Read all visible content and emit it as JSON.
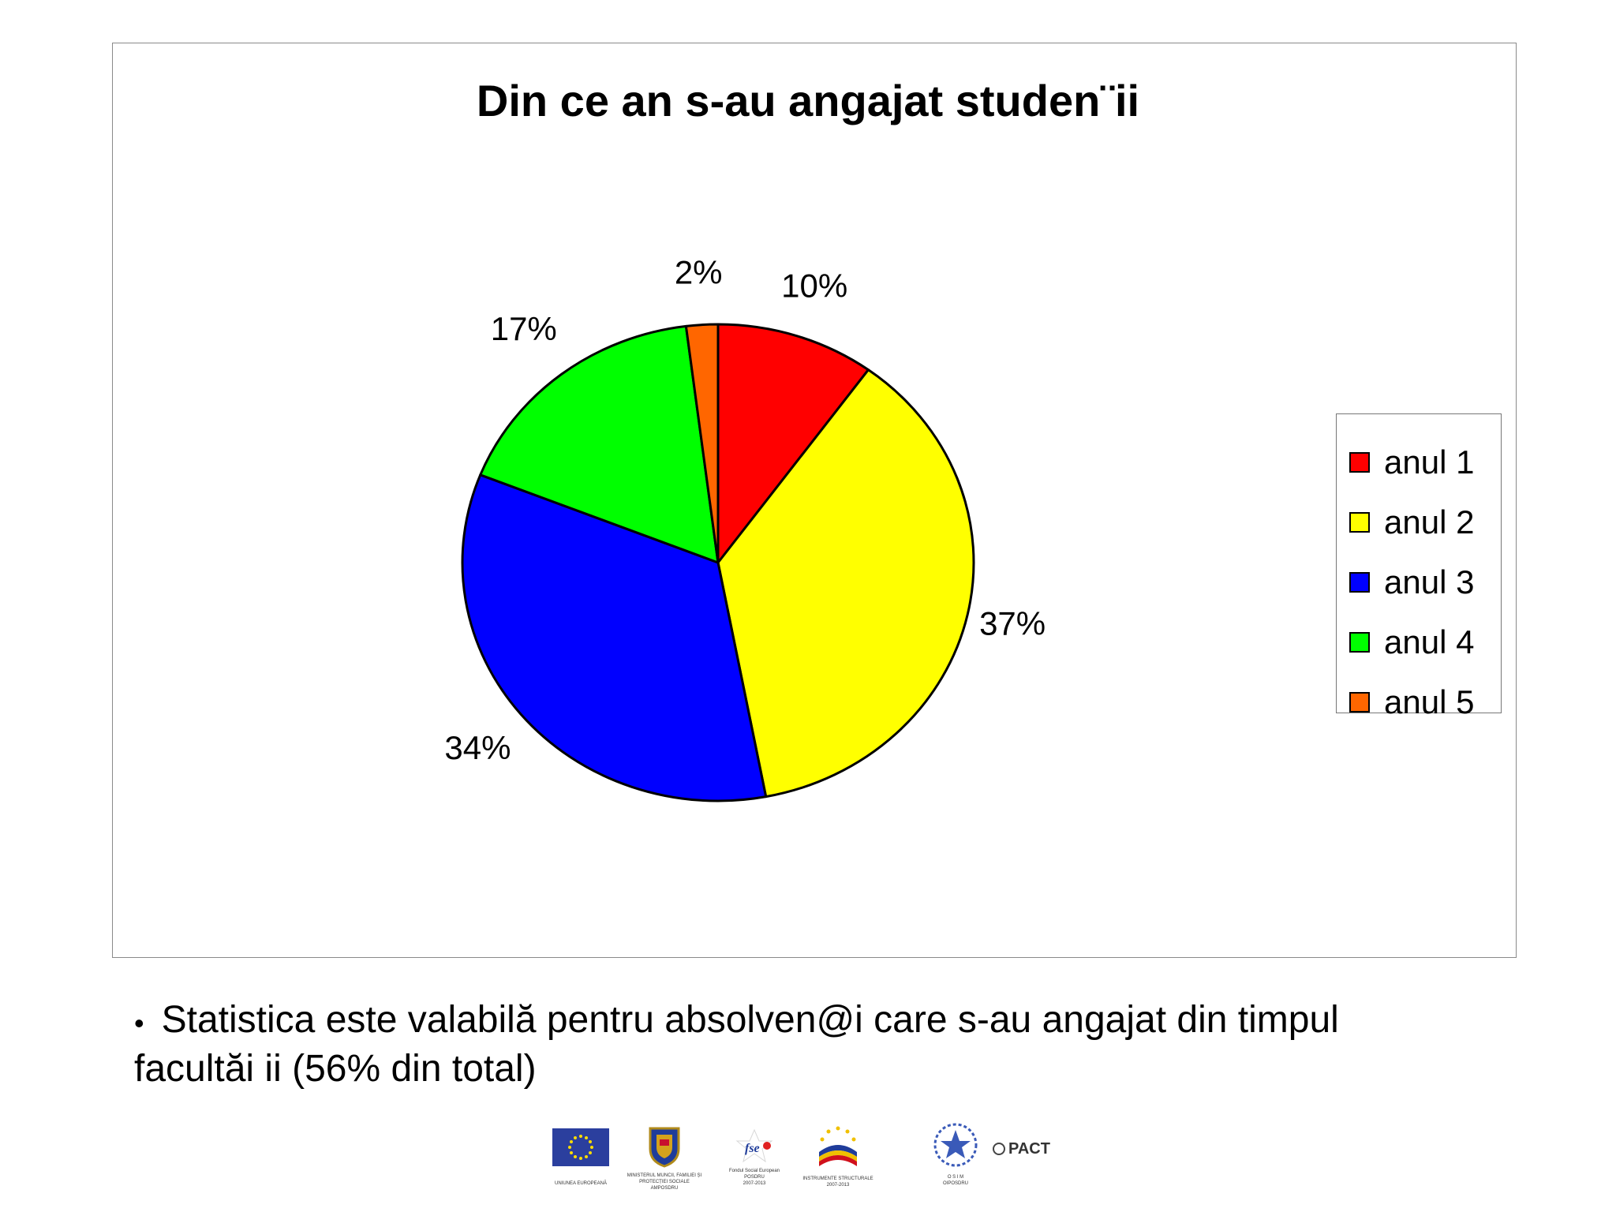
{
  "chart_data": {
    "type": "pie",
    "title": "Din ce an s-au angajat studen¨ii",
    "categories": [
      "anul 1",
      "anul 2",
      "anul 3",
      "anul 4",
      "anul 5"
    ],
    "values": [
      10,
      37,
      34,
      17,
      2
    ],
    "data_labels": [
      "10%",
      "37%",
      "34%",
      "17%",
      "2%"
    ],
    "colors": [
      "#ff0000",
      "#ffff00",
      "#0000ff",
      "#00ff00",
      "#ff6600"
    ],
    "legend_position": "right"
  },
  "footnote": {
    "bullet": "•",
    "line1": "Statistica este valabilă pentru absolven@i care s-au angajat din timpul",
    "line2": "facultăi  ii (56% din total)"
  },
  "logos": {
    "eu_caption": "UNIUNEA EUROPEANĂ",
    "ministry_caption_1": "MINISTERUL MUNCII, FAMILIEI ȘI",
    "ministry_caption_2": "PROTECȚIEI SOCIALE",
    "ministry_caption_3": "AMPOSDRU",
    "fse_text": "fse",
    "fse_caption_1": "Fondul Social European",
    "fse_caption_2": "POSDRU",
    "fse_caption_3": "2007-2013",
    "is_caption_1": "INSTRUMENTE STRUCTURALE",
    "is_caption_2": "2007-2013",
    "osim_caption_1": "O S I M",
    "osim_caption_2": "OIPOSDRU",
    "pact_text": "PACT"
  }
}
